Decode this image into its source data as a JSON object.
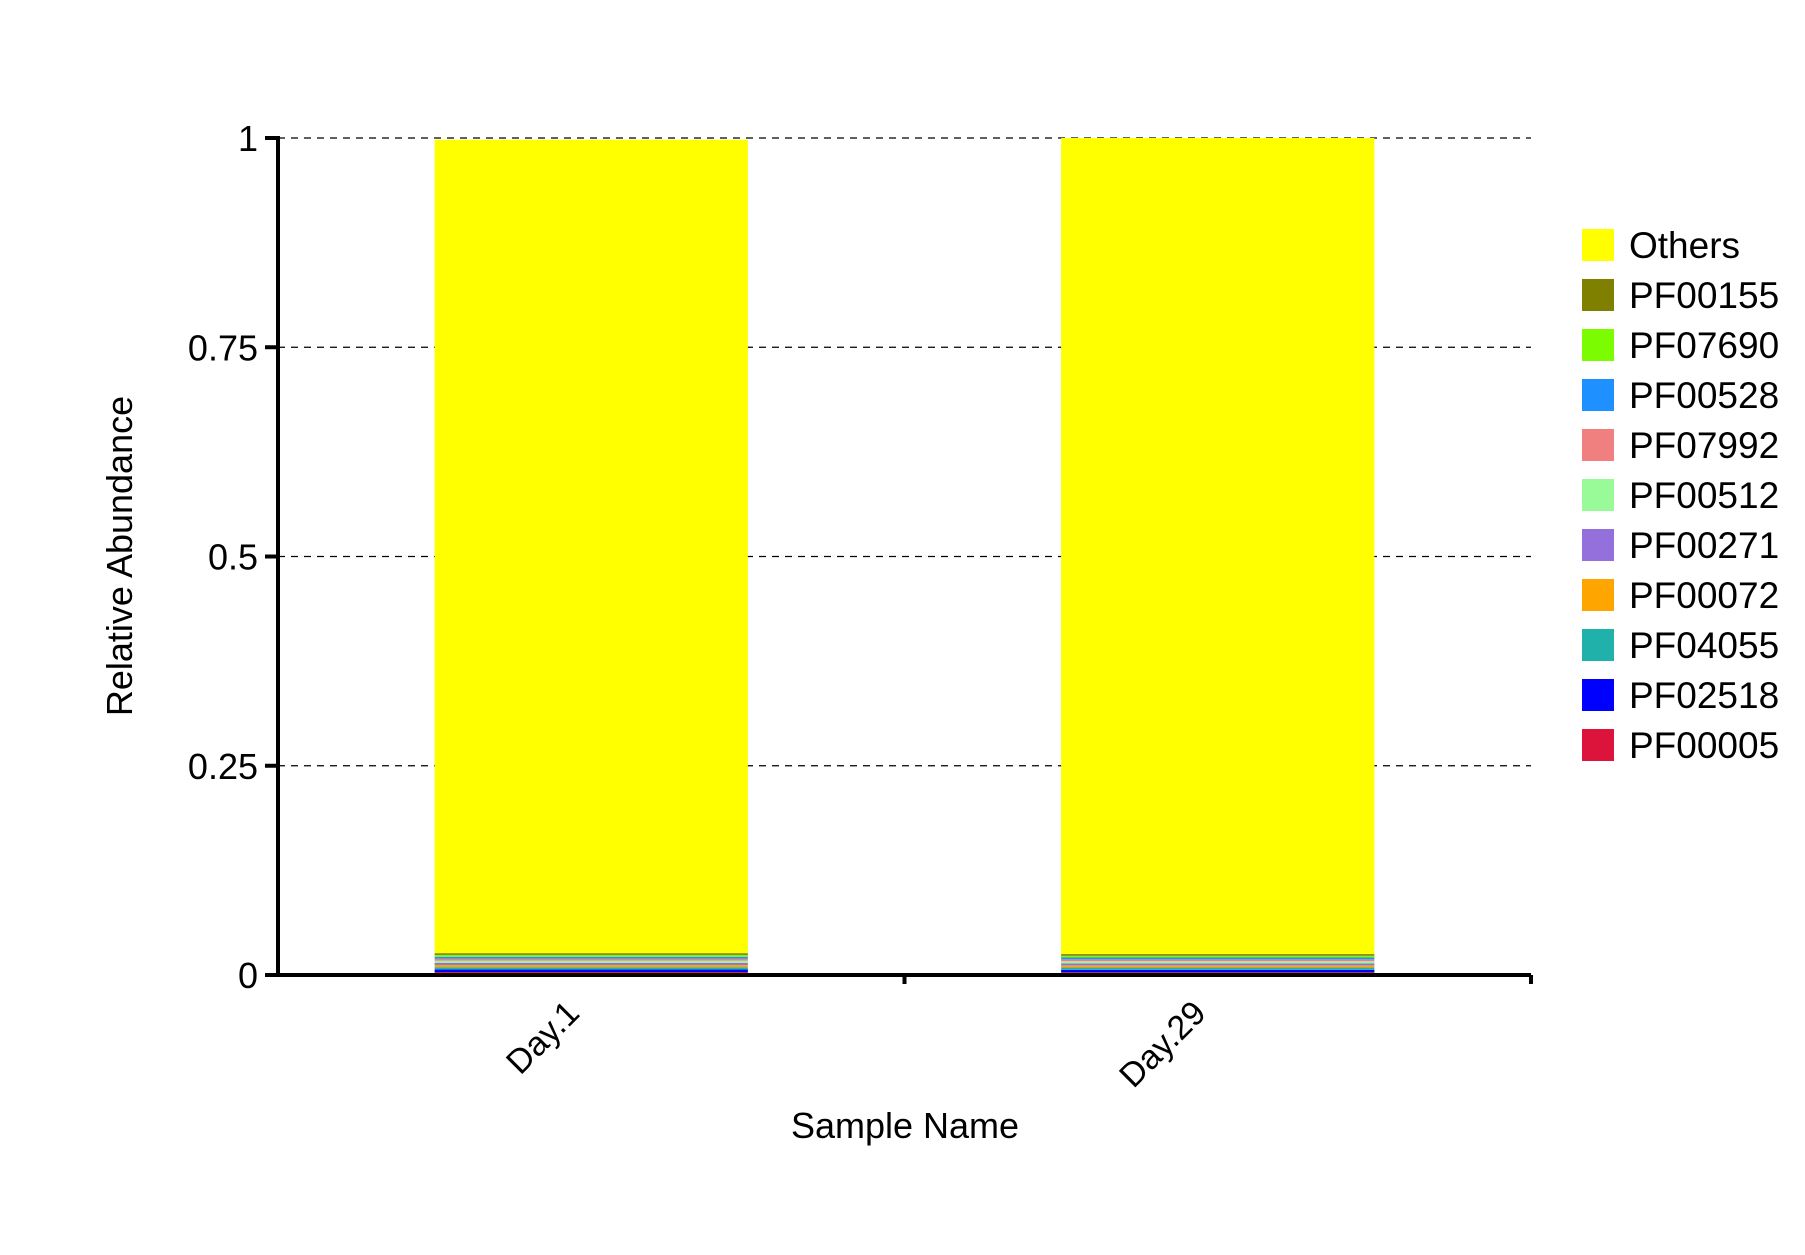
{
  "chart_data": {
    "type": "bar",
    "stacked": true,
    "categories": [
      "Day.1",
      "Day.29"
    ],
    "series": [
      {
        "name": "PF00005",
        "color": "#DC143C",
        "values": [
          0.0035,
          0.0033
        ]
      },
      {
        "name": "PF02518",
        "color": "#0000FF",
        "values": [
          0.003,
          0.0029
        ]
      },
      {
        "name": "PF04055",
        "color": "#20B2AA",
        "values": [
          0.0028,
          0.0027
        ]
      },
      {
        "name": "PF00072",
        "color": "#FFA500",
        "values": [
          0.0027,
          0.0026
        ]
      },
      {
        "name": "PF00271",
        "color": "#9370DB",
        "values": [
          0.0026,
          0.0025
        ]
      },
      {
        "name": "PF00512",
        "color": "#98FB98",
        "values": [
          0.0025,
          0.0024
        ]
      },
      {
        "name": "PF07992",
        "color": "#F08080",
        "values": [
          0.0024,
          0.0023
        ]
      },
      {
        "name": "PF00528",
        "color": "#1E90FF",
        "values": [
          0.0023,
          0.0022
        ]
      },
      {
        "name": "PF07690",
        "color": "#7CFC00",
        "values": [
          0.0022,
          0.0021
        ]
      },
      {
        "name": "PF00155",
        "color": "#808000",
        "values": [
          0.0021,
          0.002
        ]
      },
      {
        "name": "Others",
        "color": "#FFFF00",
        "values": [
          0.9719,
          0.975
        ]
      }
    ],
    "xlabel": "Sample Name",
    "ylabel": "Relative Abundance",
    "ylim": [
      0,
      1
    ],
    "yticks": [
      0,
      0.25,
      0.5,
      0.75,
      1
    ],
    "ytick_labels": [
      "0",
      "0.25",
      "0.5",
      "0.75",
      "1"
    ],
    "grid": "horizontal dashed",
    "legend": {
      "placement": "right",
      "order": [
        "Others",
        "PF00155",
        "PF07690",
        "PF00528",
        "PF07992",
        "PF00512",
        "PF00271",
        "PF00072",
        "PF04055",
        "PF02518",
        "PF00005"
      ]
    }
  }
}
